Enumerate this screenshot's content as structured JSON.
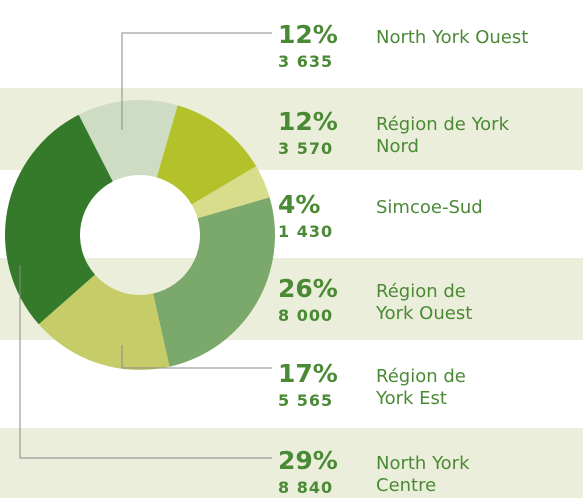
{
  "chart_data": {
    "type": "donut",
    "categories": [
      [
        "North York Ouest"
      ],
      [
        "Région de York",
        "Nord"
      ],
      [
        "Simcoe-Sud"
      ],
      [
        "Région de",
        "York Ouest"
      ],
      [
        "Région de",
        "York Est"
      ],
      [
        "North York",
        "Centre"
      ]
    ],
    "values": [
      12,
      12,
      4,
      26,
      17,
      29
    ],
    "value_labels": [
      "12%",
      "12%",
      "4%",
      "26%",
      "17%",
      "29%"
    ],
    "counts": [
      3635,
      3570,
      1430,
      8000,
      5565,
      8840
    ],
    "count_labels": [
      "3 635",
      "3 570",
      "1 430",
      "8 000",
      "5 565",
      "8 840"
    ],
    "colors": [
      "#cfdcc4",
      "#b3c22b",
      "#d8dd8c",
      "#7ba86b",
      "#c6cc68",
      "#357a2b"
    ]
  }
}
